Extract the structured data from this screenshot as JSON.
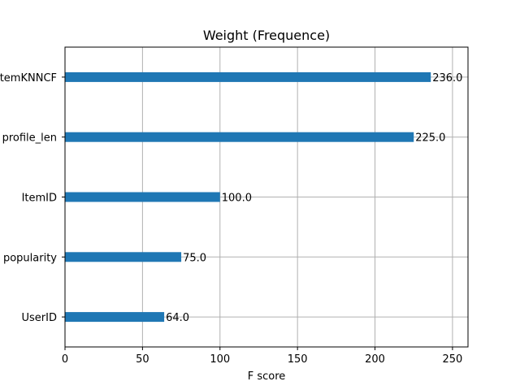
{
  "chart_data": {
    "type": "bar",
    "orientation": "horizontal",
    "title": "Weight (Frequence)",
    "xlabel": "F score",
    "ylabel": "",
    "categories": [
      "UserID",
      "popularity",
      "ItemID",
      "profile_len",
      "itemKNNCF"
    ],
    "values": [
      64.0,
      75.0,
      100.0,
      225.0,
      236.0
    ],
    "value_labels": [
      "64.0",
      "75.0",
      "100.0",
      "225.0",
      "236.0"
    ],
    "xlim": [
      0,
      260
    ],
    "xticks": [
      0,
      50,
      100,
      150,
      200,
      250
    ],
    "grid": true,
    "bar_color": "#1f77b4",
    "grid_color": "#b0b0b0"
  }
}
